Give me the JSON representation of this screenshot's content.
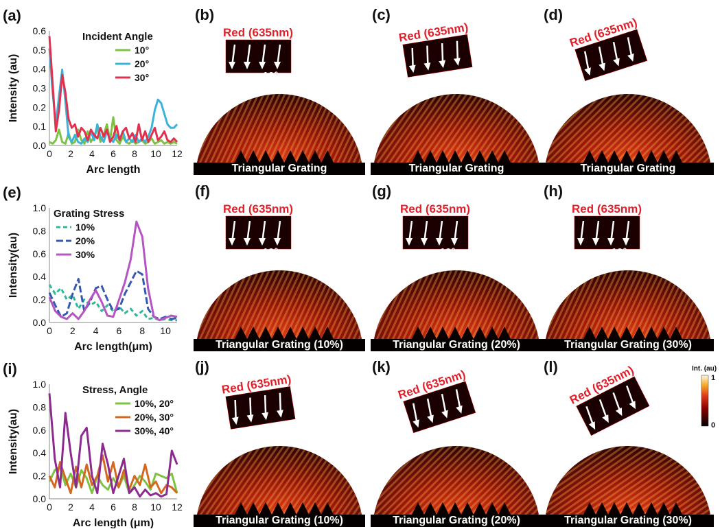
{
  "colorbar": {
    "title": "Int. (au)",
    "max_label": "1",
    "min_label": "0"
  },
  "line_charts": [
    {
      "tag": "(a)",
      "chart_data": {
        "type": "line",
        "title": "",
        "xlabel": "Arc length",
        "ylabel": "Intensity (au)",
        "legend_title": "Incident Angle",
        "legend_position": "top-right",
        "xlim": [
          0,
          12
        ],
        "ylim": [
          0,
          0.65
        ],
        "xticks": [
          "0",
          "2",
          "4",
          "6",
          "8",
          "10",
          "12"
        ],
        "yticks": [
          "0.0",
          "0.1",
          "0.2",
          "0.3",
          "0.4",
          "0.5",
          "0.6"
        ],
        "series": [
          {
            "name": "10°",
            "color": "#7dc242",
            "dash": "",
            "x": [
              0,
              0.3,
              0.6,
              0.9,
              1.2,
              1.5,
              1.8,
              2.1,
              2.4,
              2.7,
              3.0,
              3.3,
              3.6,
              3.9,
              4.2,
              4.5,
              4.8,
              5.1,
              5.4,
              5.7,
              6.0,
              6.3,
              6.6,
              6.9,
              7.2,
              7.5,
              7.8,
              8.1,
              8.4,
              8.7,
              9.0,
              9.3,
              9.6,
              9.9,
              10.2,
              10.5,
              10.8,
              11.1,
              11.4,
              11.7,
              12
            ],
            "y": [
              0.02,
              0.01,
              0.03,
              0.09,
              0.02,
              0.01,
              0.07,
              0.01,
              0.02,
              0.09,
              0.03,
              0.01,
              0.08,
              0.02,
              0.05,
              0.1,
              0.02,
              0.06,
              0.12,
              0.03,
              0.16,
              0.03,
              0.01,
              0.05,
              0.02,
              0.01,
              0.03,
              0.01,
              0.02,
              0.03,
              0.01,
              0.02,
              0.04,
              0.01,
              0.02,
              0.03,
              0.01,
              0.02,
              0.01,
              0.02,
              0.01
            ]
          },
          {
            "name": "20°",
            "color": "#3bb3d8",
            "dash": "",
            "x": [
              0,
              0.3,
              0.6,
              0.9,
              1.2,
              1.5,
              1.8,
              2.1,
              2.4,
              2.7,
              3.0,
              3.3,
              3.6,
              3.9,
              4.2,
              4.5,
              4.8,
              5.1,
              5.4,
              5.7,
              6.0,
              6.3,
              6.6,
              6.9,
              7.2,
              7.5,
              7.8,
              8.1,
              8.4,
              8.7,
              9.0,
              9.3,
              9.6,
              9.9,
              10.2,
              10.5,
              10.8,
              11.1,
              11.4,
              11.7,
              12
            ],
            "y": [
              0.55,
              0.3,
              0.12,
              0.28,
              0.43,
              0.25,
              0.05,
              0.02,
              0.06,
              0.02,
              0.01,
              0.04,
              0.02,
              0.08,
              0.03,
              0.12,
              0.05,
              0.02,
              0.08,
              0.04,
              0.02,
              0.06,
              0.03,
              0.08,
              0.02,
              0.04,
              0.02,
              0.06,
              0.02,
              0.04,
              0.02,
              0.05,
              0.1,
              0.2,
              0.26,
              0.24,
              0.18,
              0.12,
              0.1,
              0.1,
              0.12
            ]
          },
          {
            "name": "30°",
            "color": "#e0324f",
            "dash": "",
            "x": [
              0,
              0.3,
              0.6,
              0.9,
              1.2,
              1.5,
              1.8,
              2.1,
              2.4,
              2.7,
              3.0,
              3.3,
              3.6,
              3.9,
              4.2,
              4.5,
              4.8,
              5.1,
              5.4,
              5.7,
              6.0,
              6.3,
              6.6,
              6.9,
              7.2,
              7.5,
              7.8,
              8.1,
              8.4,
              8.7,
              9.0,
              9.3,
              9.6,
              9.9,
              10.2,
              10.5,
              10.8,
              11.1,
              11.4,
              11.7,
              12
            ],
            "y": [
              0.62,
              0.35,
              0.08,
              0.2,
              0.4,
              0.3,
              0.15,
              0.1,
              0.12,
              0.05,
              0.1,
              0.08,
              0.03,
              0.09,
              0.06,
              0.04,
              0.1,
              0.05,
              0.09,
              0.02,
              0.05,
              0.11,
              0.03,
              0.08,
              0.1,
              0.04,
              0.07,
              0.02,
              0.12,
              0.03,
              0.08,
              0.02,
              0.06,
              0.1,
              0.03,
              0.05,
              0.08,
              0.03,
              0.02,
              0.04,
              0.02
            ]
          }
        ]
      }
    },
    {
      "tag": "(e)",
      "chart_data": {
        "type": "line",
        "title": "",
        "xlabel": "Arc length(μm)",
        "ylabel": "Intensity(au)",
        "legend_title": "Grating Stress",
        "legend_position": "top-left",
        "xlim": [
          0,
          11
        ],
        "ylim": [
          0,
          1.0
        ],
        "xticks": [
          "0",
          "2",
          "4",
          "6",
          "8",
          "10"
        ],
        "yticks": [
          "0.0",
          "0.2",
          "0.4",
          "0.6",
          "0.8",
          "1.0"
        ],
        "series": [
          {
            "name": "10%",
            "color": "#2fb89a",
            "dash": "6,4",
            "x": [
              0,
              0.5,
              1,
              1.5,
              2,
              2.5,
              3,
              3.5,
              4,
              4.5,
              5,
              5.5,
              6,
              6.5,
              7,
              7.5,
              8,
              8.5,
              9,
              9.5,
              10,
              10.5,
              11
            ],
            "y": [
              0.33,
              0.25,
              0.3,
              0.2,
              0.24,
              0.12,
              0.2,
              0.15,
              0.18,
              0.1,
              0.15,
              0.1,
              0.14,
              0.08,
              0.12,
              0.06,
              0.1,
              0.03,
              0.04,
              0.02,
              0.03,
              0.02,
              0.02
            ]
          },
          {
            "name": "20%",
            "color": "#3558b0",
            "dash": "10,4",
            "x": [
              0,
              0.5,
              1,
              1.5,
              2,
              2.5,
              3,
              3.5,
              4,
              4.5,
              5,
              5.5,
              6,
              6.5,
              7,
              7.5,
              8,
              8.5,
              9,
              9.5,
              10,
              10.5,
              11
            ],
            "y": [
              0.26,
              0.15,
              0.05,
              0.08,
              0.25,
              0.38,
              0.1,
              0.18,
              0.3,
              0.32,
              0.2,
              0.1,
              0.12,
              0.25,
              0.35,
              0.45,
              0.42,
              0.12,
              0.05,
              0.03,
              0.05,
              0.03,
              0.04
            ]
          },
          {
            "name": "30%",
            "color": "#b455c2",
            "dash": "",
            "x": [
              0,
              0.5,
              1,
              1.5,
              2,
              2.5,
              3,
              3.5,
              4,
              4.5,
              5,
              5.5,
              6,
              6.5,
              7,
              7.5,
              8,
              8.5,
              9,
              9.5,
              10,
              10.5,
              11
            ],
            "y": [
              0.22,
              0.1,
              0.05,
              0.03,
              0.08,
              0.03,
              0.1,
              0.2,
              0.28,
              0.18,
              0.06,
              0.05,
              0.2,
              0.35,
              0.55,
              0.88,
              0.75,
              0.3,
              0.05,
              0.02,
              0.04,
              0.06,
              0.05
            ]
          }
        ]
      }
    },
    {
      "tag": "(i)",
      "chart_data": {
        "type": "line",
        "title": "",
        "xlabel": "Arc length (μm)",
        "ylabel": "Intensity(au)",
        "legend_title": "Stress, Angle",
        "legend_position": "top-right",
        "xlim": [
          0,
          12
        ],
        "ylim": [
          0,
          1.0
        ],
        "xticks": [
          "0",
          "2",
          "4",
          "6",
          "8",
          "10",
          "12"
        ],
        "yticks": [
          "0.0",
          "0.2",
          "0.4",
          "0.6",
          "0.8",
          "1.0"
        ],
        "series": [
          {
            "name": "10%, 20°",
            "color": "#7dc242",
            "dash": "",
            "x": [
              0,
              0.5,
              1,
              1.5,
              2,
              2.5,
              3,
              3.5,
              4,
              4.5,
              5,
              5.5,
              6,
              6.5,
              7,
              7.5,
              8,
              8.5,
              9,
              9.5,
              10,
              10.5,
              11,
              11.5,
              12
            ],
            "y": [
              0.15,
              0.25,
              0.28,
              0.12,
              0.22,
              0.1,
              0.25,
              0.18,
              0.05,
              0.2,
              0.12,
              0.08,
              0.18,
              0.1,
              0.2,
              0.05,
              0.12,
              0.2,
              0.15,
              0.08,
              0.22,
              0.2,
              0.18,
              0.22,
              0.05
            ]
          },
          {
            "name": "20%, 30°",
            "color": "#d2691e",
            "dash": "",
            "x": [
              0,
              0.5,
              1,
              1.5,
              2,
              2.5,
              3,
              3.5,
              4,
              4.5,
              5,
              5.5,
              6,
              6.5,
              7,
              7.5,
              8,
              8.5,
              9,
              9.5,
              10,
              10.5,
              11,
              11.5,
              12
            ],
            "y": [
              0.2,
              0.1,
              0.32,
              0.18,
              0.05,
              0.28,
              0.1,
              0.3,
              0.12,
              0.2,
              0.38,
              0.15,
              0.32,
              0.1,
              0.25,
              0.08,
              0.2,
              0.12,
              0.3,
              0.1,
              0.15,
              0.05,
              0.12,
              0.1,
              0.05
            ]
          },
          {
            "name": "30%, 40°",
            "color": "#8b2b8f",
            "dash": "",
            "x": [
              0,
              0.5,
              1,
              1.5,
              2,
              2.5,
              3,
              3.5,
              4,
              4.5,
              5,
              5.5,
              6,
              6.5,
              7,
              7.5,
              8,
              8.5,
              9,
              9.5,
              10,
              10.5,
              11,
              11.5,
              12
            ],
            "y": [
              0.92,
              0.35,
              0.1,
              0.75,
              0.4,
              0.1,
              0.55,
              0.62,
              0.2,
              0.05,
              0.48,
              0.3,
              0.05,
              0.2,
              0.35,
              0.05,
              0.1,
              0.02,
              0.08,
              0.03,
              0.05,
              0.02,
              0.04,
              0.42,
              0.3
            ]
          }
        ]
      }
    }
  ],
  "sim_panels": [
    {
      "tag": "(b)",
      "source": "Red (635nm)",
      "angle": "10°",
      "caption": "Triangular Grating"
    },
    {
      "tag": "(c)",
      "source": "Red (635nm)",
      "angle": "20°",
      "caption": "Triangular Grating"
    },
    {
      "tag": "(d)",
      "source": "Red (635nm)",
      "angle": "30°",
      "caption": "Triangular Grating"
    },
    {
      "tag": "(f)",
      "source": "Red (635nm)",
      "angle": "10°",
      "caption": "Triangular Grating (10%)"
    },
    {
      "tag": "(g)",
      "source": "Red (635nm)",
      "angle": "10°",
      "caption": "Triangular Grating (20%)"
    },
    {
      "tag": "(h)",
      "source": "Red (635nm)",
      "angle": "10°",
      "caption": "Triangular Grating (30%)"
    },
    {
      "tag": "(j)",
      "source": "Red (635nm)",
      "angle": "20°",
      "caption": "Triangular Grating (10%)"
    },
    {
      "tag": "(k)",
      "source": "Red (635nm)",
      "angle": "30°",
      "caption": "Triangular Grating (20%)"
    },
    {
      "tag": "(l)",
      "source": "Red (635nm)",
      "angle": "40°",
      "caption": "Triangular Grating (30%)"
    }
  ]
}
